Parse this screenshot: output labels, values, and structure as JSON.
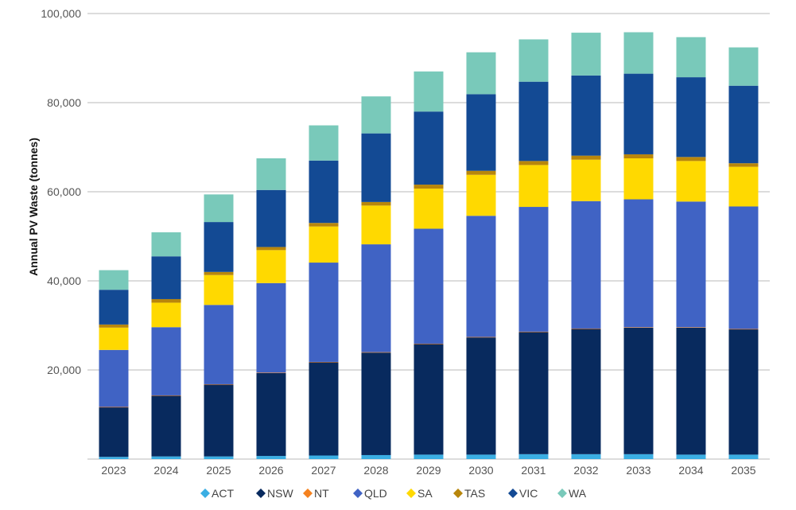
{
  "chart_data": {
    "type": "bar",
    "stacked": true,
    "title": "",
    "xlabel": "",
    "ylabel": "Annual PV Waste (tonnes)",
    "ylim": [
      0,
      100000
    ],
    "yticks": [
      0,
      20000,
      40000,
      60000,
      80000,
      100000
    ],
    "ytick_labels": [
      "",
      "20,000",
      "40,000",
      "60,000",
      "80,000",
      "100,000"
    ],
    "grid": true,
    "legend_position": "bottom",
    "categories": [
      "2023",
      "2024",
      "2025",
      "2026",
      "2027",
      "2028",
      "2029",
      "2030",
      "2031",
      "2032",
      "2033",
      "2034",
      "2035"
    ],
    "series": [
      {
        "name": "ACT",
        "color": "#3aaee3",
        "values": [
          500,
          600,
          600,
          700,
          800,
          900,
          1000,
          1000,
          1100,
          1100,
          1100,
          1000,
          1000
        ]
      },
      {
        "name": "NSW",
        "color": "#082a5e",
        "values": [
          11100,
          13600,
          16100,
          18600,
          20900,
          23000,
          24800,
          26300,
          27400,
          28100,
          28400,
          28500,
          28100
        ]
      },
      {
        "name": "NT",
        "color": "#f5821f",
        "values": [
          100,
          100,
          100,
          100,
          100,
          100,
          100,
          100,
          100,
          100,
          100,
          100,
          100
        ]
      },
      {
        "name": "QLD",
        "color": "#4063c4",
        "values": [
          12800,
          15300,
          17800,
          20100,
          22300,
          24200,
          25800,
          27200,
          28000,
          28600,
          28700,
          28200,
          27500
        ]
      },
      {
        "name": "SA",
        "color": "#ffd900",
        "values": [
          5000,
          5500,
          6700,
          7400,
          8100,
          8700,
          9000,
          9200,
          9400,
          9300,
          9200,
          9100,
          8900
        ]
      },
      {
        "name": "TAS",
        "color": "#b8860b",
        "values": [
          700,
          800,
          700,
          700,
          800,
          800,
          900,
          900,
          900,
          900,
          900,
          900,
          800
        ]
      },
      {
        "name": "VIC",
        "color": "#134a94",
        "values": [
          7800,
          9600,
          11200,
          12800,
          14000,
          15400,
          16400,
          17200,
          17800,
          18000,
          18100,
          17900,
          17400
        ]
      },
      {
        "name": "WA",
        "color": "#79c9ba",
        "values": [
          4400,
          5400,
          6200,
          7100,
          7900,
          8300,
          9000,
          9400,
          9500,
          9600,
          9300,
          9000,
          8600
        ]
      }
    ]
  }
}
